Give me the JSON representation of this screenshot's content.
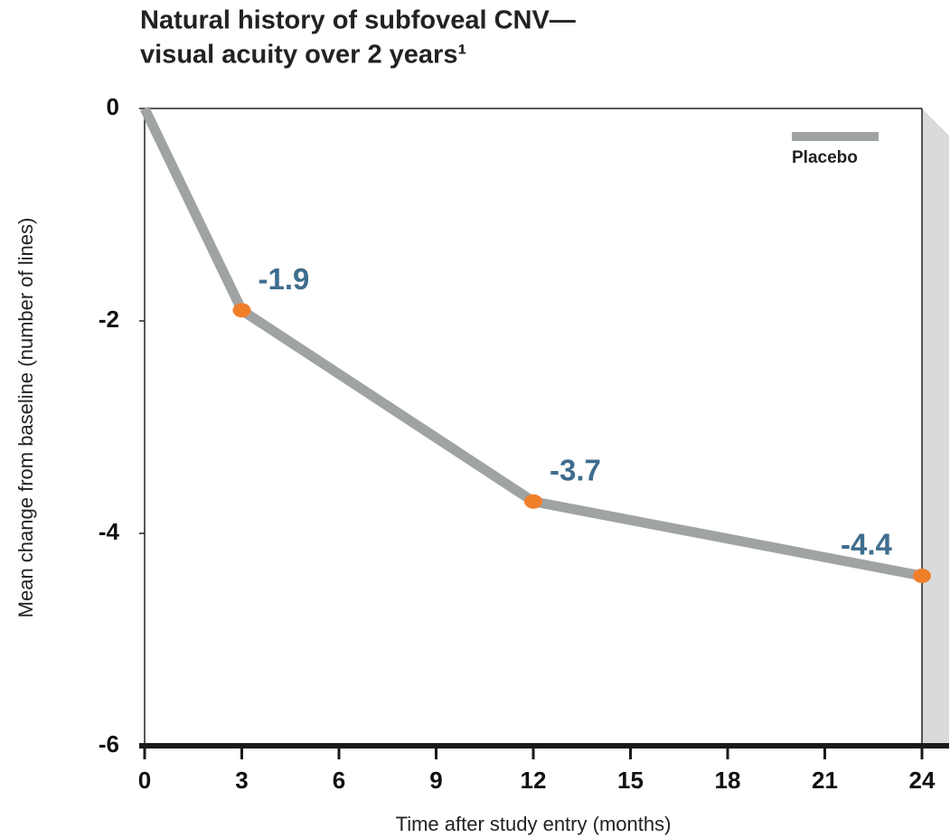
{
  "chart_data": {
    "type": "line",
    "title": [
      "Natural history of subfoveal CNV—",
      "visual acuity over 2 years¹"
    ],
    "x_label": "Time after study entry (months)",
    "y_label": "Mean change from baseline (number of lines)",
    "x": [
      0,
      3,
      12,
      24
    ],
    "series": [
      {
        "name": "Placebo",
        "color": "#a0a3a3",
        "marker_color": "#f07f2a",
        "label_color": "#3e6d8e",
        "values": [
          0,
          -1.9,
          -3.7,
          -4.4
        ],
        "value_labels": [
          null,
          "-1.9",
          "-3.7",
          "-4.4"
        ]
      }
    ],
    "xlim": [
      0,
      24
    ],
    "xticks": [
      0,
      3,
      6,
      9,
      12,
      15,
      18,
      21,
      24
    ],
    "ylim": [
      -6,
      0
    ],
    "yticks": [
      0,
      -2,
      -4,
      -6
    ],
    "legend": "upper right",
    "grid": false
  }
}
